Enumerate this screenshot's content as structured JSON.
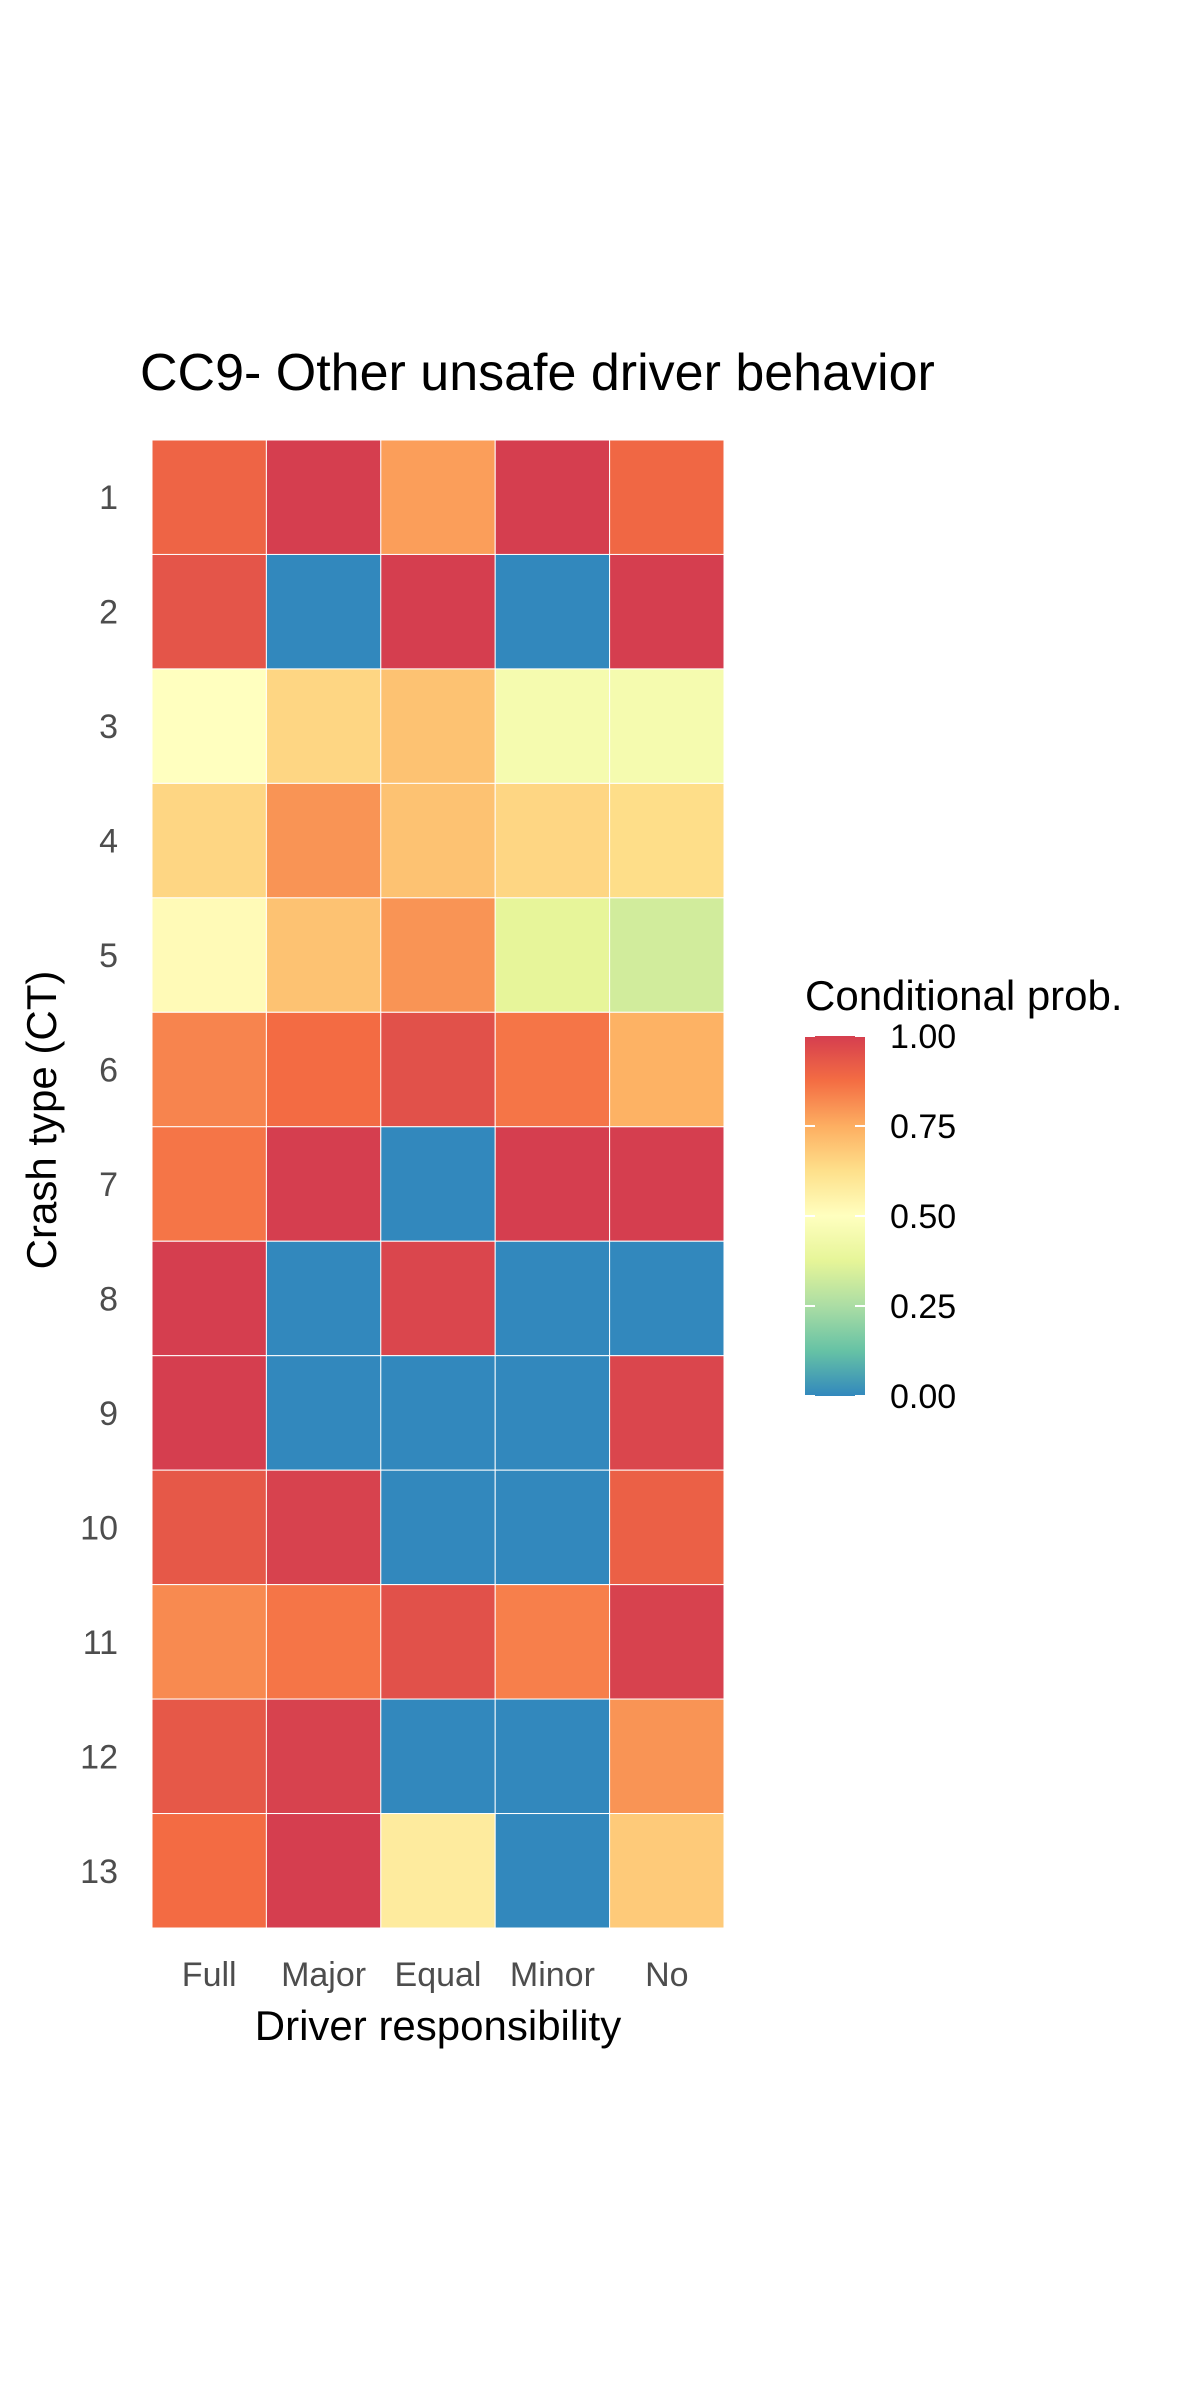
{
  "chart_data": {
    "type": "heatmap",
    "title": "CC9- Other unsafe driver behavior",
    "xlabel": "Driver responsibility",
    "ylabel": "Crash type (CT)",
    "x_categories": [
      "Full",
      "Major",
      "Equal",
      "Minor",
      "No"
    ],
    "y_categories": [
      "1",
      "2",
      "3",
      "4",
      "5",
      "6",
      "7",
      "8",
      "9",
      "10",
      "11",
      "12",
      "13"
    ],
    "values": [
      [
        0.9,
        1.0,
        0.78,
        1.0,
        0.89
      ],
      [
        0.94,
        0.0,
        1.0,
        0.0,
        1.0
      ],
      [
        0.5,
        0.65,
        0.7,
        0.45,
        0.45
      ],
      [
        0.65,
        0.8,
        0.7,
        0.65,
        0.63
      ],
      [
        0.52,
        0.7,
        0.8,
        0.38,
        0.33
      ],
      [
        0.83,
        0.88,
        0.95,
        0.86,
        0.74
      ],
      [
        0.86,
        1.0,
        0.0,
        1.0,
        1.0
      ],
      [
        1.0,
        0.0,
        0.98,
        0.0,
        0.0
      ],
      [
        1.0,
        0.0,
        0.0,
        0.0,
        0.98
      ],
      [
        0.93,
        0.99,
        0.0,
        0.0,
        0.91
      ],
      [
        0.82,
        0.86,
        0.95,
        0.84,
        0.99
      ],
      [
        0.93,
        0.99,
        0.0,
        0.0,
        0.8
      ],
      [
        0.88,
        1.0,
        0.58,
        0.0,
        0.68
      ]
    ],
    "legend": {
      "title": "Conditional prob.",
      "ticks": [
        "1.00",
        "0.75",
        "0.50",
        "0.25",
        "0.00"
      ],
      "tick_values": [
        1.0,
        0.75,
        0.5,
        0.25,
        0.0
      ],
      "placement": "right",
      "colorscale": [
        "#3288bd",
        "#66c2a5",
        "#abdda4",
        "#e6f598",
        "#ffffbf",
        "#fee08b",
        "#fdae61",
        "#f46d43",
        "#d53e4f"
      ]
    },
    "grid": false
  }
}
